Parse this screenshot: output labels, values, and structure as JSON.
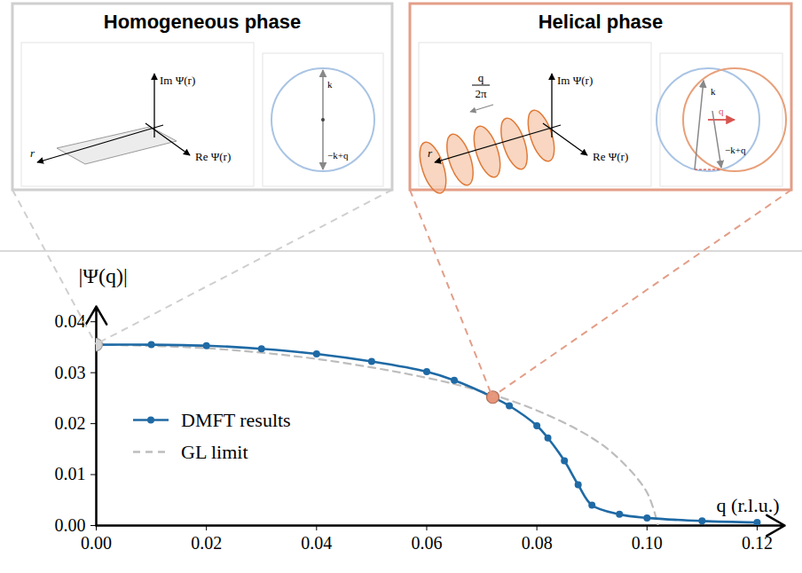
{
  "insets": [
    {
      "title": "Homogeneous phase",
      "color": "#cfcfcf",
      "labels": {
        "im_axis": "Im Ψ(r)",
        "re_axis": "Re Ψ(r)",
        "r_axis": "r",
        "k": "k",
        "minus_k_plus_q": "−k+q"
      }
    },
    {
      "title": "Helical phase",
      "color": "#e39e88",
      "labels": {
        "im_axis": "Im Ψ(r)",
        "re_axis": "Re Ψ(r)",
        "r_axis": "r",
        "k": "k",
        "minus_k_plus_q": "−k+q",
        "q": "q",
        "pitch_numerator": "q",
        "pitch_denominator": "2π"
      }
    }
  ],
  "chart_data": {
    "type": "line",
    "xlabel": "q (r.l.u.)",
    "ylabel": "|Ψ(q)|",
    "xlim": [
      0,
      0.125
    ],
    "ylim": [
      0,
      0.043
    ],
    "xticks": [
      {
        "value": 0,
        "label": "0.00"
      },
      {
        "value": 0.02,
        "label": "0.02"
      },
      {
        "value": 0.04,
        "label": "0.04"
      },
      {
        "value": 0.06,
        "label": "0.06"
      },
      {
        "value": 0.08,
        "label": "0.08"
      },
      {
        "value": 0.1,
        "label": "0.10"
      },
      {
        "value": 0.12,
        "label": "0.12"
      }
    ],
    "yticks": [
      {
        "value": 0,
        "label": "0.00"
      },
      0.01,
      0.02,
      0.03,
      0.04
    ],
    "grid": false,
    "legend": "center-left",
    "series": [
      {
        "name": "DMFT results",
        "color": "#1f6aa5",
        "marker": "circle",
        "line_style": "solid",
        "x": [
          0,
          0.01,
          0.02,
          0.03,
          0.04,
          0.05,
          0.06,
          0.065,
          0.072,
          0.075,
          0.08,
          0.082,
          0.085,
          0.0875,
          0.09,
          0.095,
          0.1,
          0.11,
          0.12
        ],
        "values": [
          0.0355,
          0.0355,
          0.0353,
          0.0347,
          0.0337,
          0.0322,
          0.0302,
          0.0285,
          0.0252,
          0.0235,
          0.0196,
          0.0172,
          0.0127,
          0.008,
          0.004,
          0.0022,
          0.0015,
          0.0009,
          0.0006
        ]
      },
      {
        "name": "GL limit",
        "color": "#bdbdbd",
        "marker": "none",
        "line_style": "dashed",
        "x": [
          0,
          0.02,
          0.04,
          0.06,
          0.07,
          0.08,
          0.09,
          0.095,
          0.1,
          0.102
        ],
        "values": [
          0.0355,
          0.0348,
          0.0327,
          0.029,
          0.0263,
          0.0226,
          0.0172,
          0.013,
          0.0065,
          0
        ]
      }
    ],
    "highlights": [
      {
        "x": 0,
        "y": 0.0355,
        "color": "#d4d4d4"
      },
      {
        "x": 0.072,
        "y": 0.0252,
        "color": "#e8967a"
      }
    ]
  }
}
